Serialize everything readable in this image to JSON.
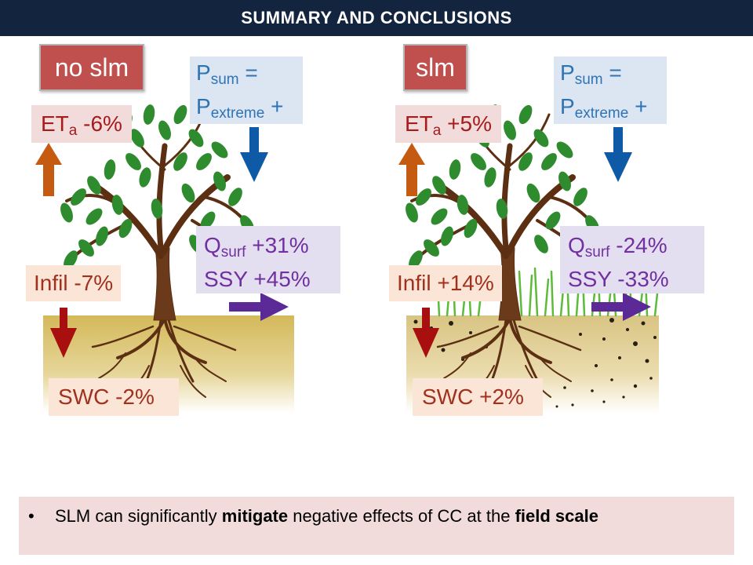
{
  "header": {
    "title": "SUMMARY AND CONCLUSIONS"
  },
  "colors": {
    "header_bg": "#13243f",
    "badge_bg": "#c0504d",
    "precip_text": "#2e74b5",
    "eta_text": "#a61c1c",
    "q_text": "#7030a0",
    "infil_text": "#a0311f",
    "arrow_up": "#c55a11",
    "arrow_down_blue": "#0f5aa6",
    "arrow_right": "#5b2a96",
    "arrow_down_red": "#a80f0f"
  },
  "panels": [
    {
      "badge": "no slm",
      "precip": {
        "p1": "P",
        "s1": "sum",
        "t1": " =",
        "p2": "P",
        "s2": "extreme",
        "t2": " +"
      },
      "eta": {
        "main": "ET",
        "sub": "a",
        "value": " -6%"
      },
      "runoff": {
        "q_main": "Q",
        "q_sub": "surf",
        "q_value": " +31%",
        "ssy": "SSY +45%"
      },
      "infil": "Infil -7%",
      "swc": "SWC -2%"
    },
    {
      "badge": "slm",
      "precip": {
        "p1": "P",
        "s1": "sum",
        "t1": " =",
        "p2": "P",
        "s2": "extreme",
        "t2": " +"
      },
      "eta": {
        "main": "ET",
        "sub": "a",
        "value": " +5%"
      },
      "runoff": {
        "q_main": "Q",
        "q_sub": "surf",
        "q_value": " -24%",
        "ssy": "SSY -33%"
      },
      "infil": "Infil +14%",
      "swc": "SWC +2%"
    }
  ],
  "conclusion": {
    "bullet": "•",
    "part1": "SLM can significantly ",
    "bold1": "mitigate",
    "part2": " negative effects of CC at the ",
    "bold2": "field scale"
  }
}
